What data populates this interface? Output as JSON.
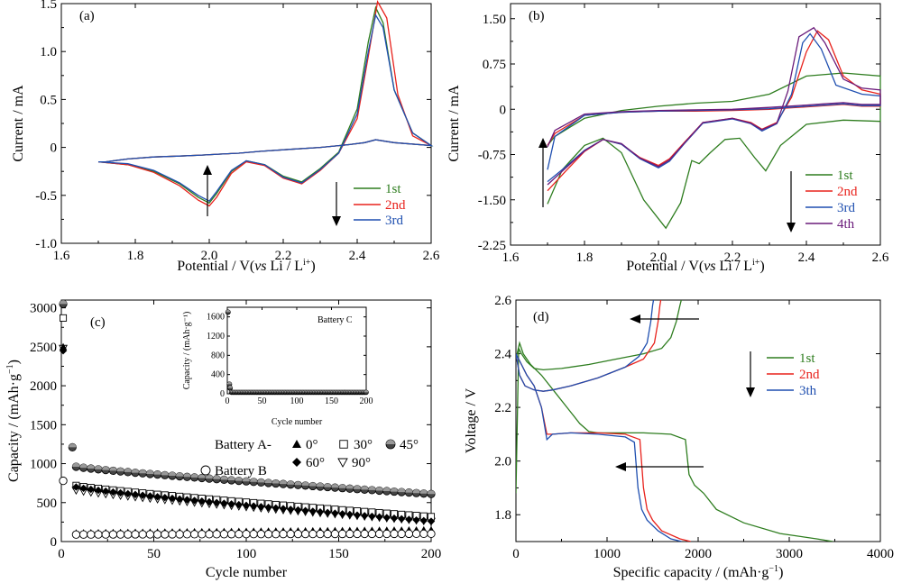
{
  "colors": {
    "green": "#2e7d1f",
    "red": "#e8221c",
    "blue": "#1f4fb0",
    "purple": "#6a1b7a",
    "black": "#000000"
  },
  "chart_data": [
    {
      "panel": "(a)",
      "type": "line",
      "xlabel_main": "Potential / V(",
      "xlabel_it": "vs",
      "xlabel_tail": " Li / L",
      "xlabel_sup": "i+",
      "xlabel_close": ")",
      "ylabel": "Current / mA",
      "xlim": [
        1.6,
        2.6
      ],
      "ylim": [
        -1.0,
        1.5
      ],
      "xticks": [
        "1.6",
        "1.8",
        "2.0",
        "2.2",
        "2.4",
        "2.6"
      ],
      "yticks": [
        "-1.0",
        "-0.5",
        "0",
        "0.5",
        "1.0",
        "1.5"
      ],
      "legend": [
        "1st",
        "2nd",
        "3rd"
      ],
      "series": [
        {
          "name": "1st",
          "color": "green",
          "x": [
            1.7,
            1.78,
            1.85,
            1.92,
            1.97,
            2.0,
            2.02,
            2.06,
            2.1,
            2.15,
            2.2,
            2.25,
            2.3,
            2.35,
            2.4,
            2.43,
            2.45,
            2.47,
            2.5,
            2.55,
            2.6,
            2.5,
            2.45,
            2.42,
            2.38,
            2.3,
            2.22,
            2.14,
            2.08,
            2.03,
            1.98,
            1.92,
            1.85,
            1.78,
            1.72,
            1.7
          ],
          "y": [
            -0.15,
            -0.18,
            -0.25,
            -0.38,
            -0.52,
            -0.58,
            -0.48,
            -0.25,
            -0.14,
            -0.18,
            -0.3,
            -0.36,
            -0.22,
            -0.05,
            0.4,
            1.1,
            1.46,
            1.3,
            0.6,
            0.15,
            0.02,
            0.05,
            0.08,
            0.05,
            0.03,
            0.0,
            -0.02,
            -0.04,
            -0.06,
            -0.07,
            -0.08,
            -0.09,
            -0.1,
            -0.12,
            -0.15,
            -0.15
          ]
        },
        {
          "name": "2nd",
          "color": "red",
          "x": [
            1.7,
            1.78,
            1.85,
            1.92,
            1.97,
            2.0,
            2.02,
            2.06,
            2.1,
            2.15,
            2.2,
            2.25,
            2.3,
            2.35,
            2.4,
            2.43,
            2.455,
            2.48,
            2.51,
            2.55,
            2.6,
            2.5,
            2.45,
            2.42,
            2.38,
            2.3,
            2.22,
            2.14,
            2.08,
            2.03,
            1.98,
            1.92,
            1.85,
            1.78,
            1.72,
            1.7
          ],
          "y": [
            -0.15,
            -0.18,
            -0.26,
            -0.4,
            -0.55,
            -0.61,
            -0.52,
            -0.27,
            -0.15,
            -0.19,
            -0.32,
            -0.38,
            -0.24,
            -0.06,
            0.3,
            0.95,
            1.52,
            1.35,
            0.55,
            0.12,
            0.02,
            0.05,
            0.08,
            0.05,
            0.03,
            0.0,
            -0.02,
            -0.04,
            -0.06,
            -0.07,
            -0.08,
            -0.09,
            -0.1,
            -0.12,
            -0.15,
            -0.15
          ]
        },
        {
          "name": "3rd",
          "color": "blue",
          "x": [
            1.7,
            1.78,
            1.85,
            1.92,
            1.97,
            2.0,
            2.02,
            2.06,
            2.1,
            2.15,
            2.2,
            2.25,
            2.3,
            2.35,
            2.4,
            2.43,
            2.45,
            2.47,
            2.5,
            2.55,
            2.6,
            2.5,
            2.45,
            2.42,
            2.38,
            2.3,
            2.22,
            2.14,
            2.08,
            2.03,
            1.98,
            1.92,
            1.85,
            1.78,
            1.72,
            1.7
          ],
          "y": [
            -0.15,
            -0.17,
            -0.24,
            -0.37,
            -0.5,
            -0.56,
            -0.46,
            -0.24,
            -0.14,
            -0.18,
            -0.31,
            -0.37,
            -0.23,
            -0.06,
            0.35,
            1.0,
            1.38,
            1.25,
            0.6,
            0.15,
            0.02,
            0.05,
            0.08,
            0.05,
            0.03,
            0.0,
            -0.02,
            -0.04,
            -0.06,
            -0.07,
            -0.08,
            -0.09,
            -0.1,
            -0.12,
            -0.15,
            -0.15
          ]
        }
      ]
    },
    {
      "panel": "(b)",
      "type": "line",
      "xlabel_main": "Potential / V(",
      "xlabel_it": "vs",
      "xlabel_tail": " Li / L",
      "xlabel_sup": "i+",
      "xlabel_close": ")",
      "ylabel": "Current / mA",
      "xlim": [
        1.6,
        2.6
      ],
      "ylim": [
        -2.25,
        1.75
      ],
      "xticks": [
        "1.6",
        "1.8",
        "2.0",
        "2.2",
        "2.4",
        "2.6"
      ],
      "yticks": [
        "-2.25",
        "-1.50",
        "-0.75",
        "0",
        "0.75",
        "1.50"
      ],
      "legend": [
        "1st",
        "2nd",
        "3rd",
        "4th"
      ],
      "series": [
        {
          "name": "1st",
          "color": "green",
          "x": [
            1.7,
            1.74,
            1.8,
            1.85,
            1.9,
            1.96,
            2.02,
            2.06,
            2.09,
            2.11,
            2.14,
            2.18,
            2.22,
            2.26,
            2.29,
            2.33,
            2.4,
            2.5,
            2.6,
            2.6,
            2.5,
            2.4,
            2.3,
            2.2,
            2.1,
            2.0,
            1.9,
            1.8,
            1.72,
            1.7
          ],
          "y": [
            -1.57,
            -1.0,
            -0.6,
            -0.48,
            -0.72,
            -1.5,
            -1.97,
            -1.55,
            -0.85,
            -0.9,
            -0.72,
            -0.5,
            -0.48,
            -0.8,
            -1.02,
            -0.6,
            -0.25,
            -0.18,
            -0.2,
            0.55,
            0.6,
            0.55,
            0.25,
            0.13,
            0.1,
            0.05,
            -0.02,
            -0.15,
            -0.45,
            -0.6
          ]
        },
        {
          "name": "2nd",
          "color": "red",
          "x": [
            1.7,
            1.75,
            1.8,
            1.85,
            1.9,
            1.95,
            2.0,
            2.03,
            2.07,
            2.12,
            2.2,
            2.25,
            2.28,
            2.32,
            2.36,
            2.4,
            2.43,
            2.46,
            2.5,
            2.55,
            2.6,
            2.6,
            2.55,
            2.5,
            2.45,
            2.4,
            2.35,
            2.3,
            2.2,
            2.1,
            2.0,
            1.9,
            1.8,
            1.72,
            1.7
          ],
          "y": [
            -1.35,
            -1.02,
            -0.7,
            -0.5,
            -0.58,
            -0.8,
            -0.93,
            -0.82,
            -0.55,
            -0.22,
            -0.15,
            -0.22,
            -0.33,
            -0.22,
            0.2,
            0.95,
            1.3,
            1.15,
            0.55,
            0.32,
            0.25,
            0.05,
            0.05,
            0.08,
            0.06,
            0.04,
            0.02,
            0.0,
            -0.02,
            -0.03,
            -0.03,
            -0.05,
            -0.1,
            -0.4,
            -0.6
          ]
        },
        {
          "name": "3rd",
          "color": "blue",
          "x": [
            1.7,
            1.75,
            1.8,
            1.85,
            1.9,
            1.95,
            2.0,
            2.03,
            2.07,
            2.12,
            2.2,
            2.25,
            2.28,
            2.32,
            2.36,
            2.39,
            2.41,
            2.44,
            2.48,
            2.55,
            2.6,
            2.6,
            2.55,
            2.5,
            2.45,
            2.4,
            2.35,
            2.3,
            2.2,
            2.1,
            2.0,
            1.9,
            1.8,
            1.72,
            1.7
          ],
          "y": [
            -1.2,
            -0.95,
            -0.68,
            -0.5,
            -0.58,
            -0.82,
            -0.97,
            -0.86,
            -0.57,
            -0.23,
            -0.16,
            -0.24,
            -0.36,
            -0.24,
            0.25,
            1.1,
            1.25,
            1.0,
            0.4,
            0.25,
            0.22,
            0.06,
            0.06,
            0.09,
            0.07,
            0.05,
            0.03,
            0.01,
            -0.01,
            -0.02,
            -0.03,
            -0.05,
            -0.1,
            -0.45,
            -1.0
          ]
        },
        {
          "name": "4th",
          "color": "purple",
          "x": [
            1.7,
            1.75,
            1.8,
            1.85,
            1.9,
            1.95,
            2.0,
            2.03,
            2.07,
            2.12,
            2.2,
            2.25,
            2.28,
            2.32,
            2.35,
            2.38,
            2.42,
            2.45,
            2.5,
            2.55,
            2.6,
            2.6,
            2.55,
            2.5,
            2.45,
            2.4,
            2.35,
            2.3,
            2.2,
            2.1,
            2.0,
            1.9,
            1.8,
            1.72,
            1.7
          ],
          "y": [
            -1.25,
            -0.97,
            -0.69,
            -0.5,
            -0.57,
            -0.81,
            -0.95,
            -0.84,
            -0.56,
            -0.22,
            -0.15,
            -0.23,
            -0.34,
            -0.23,
            0.3,
            1.2,
            1.35,
            1.1,
            0.5,
            0.35,
            0.32,
            0.08,
            0.08,
            0.11,
            0.09,
            0.07,
            0.05,
            0.03,
            0.0,
            -0.01,
            -0.02,
            -0.04,
            -0.08,
            -0.35,
            -0.62
          ]
        }
      ]
    },
    {
      "panel": "(c)",
      "type": "scatter",
      "xlabel": "Cycle number",
      "ylabel_main": "Capacity / (mAh·g",
      "ylabel_sup": "−1",
      "ylabel_close": ")",
      "xlim": [
        0,
        200
      ],
      "ylim": [
        0,
        3100
      ],
      "xticks": [
        "0",
        "50",
        "100",
        "150",
        "200"
      ],
      "yticks": [
        "0",
        "500",
        "1000",
        "1500",
        "2000",
        "2500",
        "3000"
      ],
      "legend": {
        "a": "Battery A-",
        "b": "Battery B",
        "angles": [
          "0°",
          "30°",
          "45°",
          "60°",
          "90°"
        ]
      },
      "series": [
        {
          "name": "0°",
          "marker": "triangle",
          "first": [
            [
              1,
              2500
            ]
          ],
          "start": 110,
          "end": 150
        },
        {
          "name": "30°",
          "marker": "square",
          "first": [
            [
              1,
              2870
            ]
          ],
          "start": 720,
          "end": 320
        },
        {
          "name": "45°",
          "marker": "halfcircle",
          "first": [
            [
              1,
              3050
            ],
            [
              6,
              1210
            ]
          ],
          "start": 960,
          "end": 610
        },
        {
          "name": "60°",
          "marker": "diamond",
          "first": [
            [
              1,
              2450
            ]
          ],
          "start": 700,
          "end": 260
        },
        {
          "name": "90°",
          "marker": "triangle-down",
          "first": [
            [
              1,
              2480
            ]
          ],
          "start": 660,
          "end": 260
        },
        {
          "name": "Battery B",
          "marker": "circle",
          "first": [
            [
              1,
              780
            ]
          ],
          "start": 90,
          "end": 100
        }
      ],
      "inset": {
        "title": "Battery C",
        "xlabel": "Cycle number",
        "ylabel": "Capacity / (mAh·g⁻¹)",
        "xlim": [
          0,
          200
        ],
        "ylim": [
          0,
          1800
        ],
        "xticks": [
          "0",
          "50",
          "100",
          "150",
          "200"
        ],
        "yticks": [
          "0",
          "400",
          "800",
          "1200",
          "1600"
        ],
        "first": [
          [
            1,
            1700
          ],
          [
            3,
            200
          ],
          [
            4,
            120
          ]
        ],
        "tail": 30
      }
    },
    {
      "panel": "(d)",
      "type": "line",
      "xlabel_main": "Specific capacity / (mAh·g",
      "xlabel_sup": "−1",
      "xlabel_close": ")",
      "ylabel": "Voltage / V",
      "xlim": [
        0,
        4000
      ],
      "ylim": [
        1.7,
        2.6
      ],
      "xticks": [
        "0",
        "1000",
        "2000",
        "3000",
        "4000"
      ],
      "yticks": [
        "1.8",
        "2.0",
        "2.2",
        "2.4",
        "2.6"
      ],
      "legend": [
        "1st",
        "2nd",
        "3th"
      ],
      "series": [
        {
          "name": "1st",
          "color": "green",
          "discharge": {
            "x": [
              0,
              40,
              80,
              160,
              280,
              420,
              560,
              700,
              800,
              900,
              1100,
              1400,
              1700,
              1860,
              1900,
              1960,
              2060,
              2200,
              2500,
              2900,
              3300,
              3480
            ],
            "y": [
              2.38,
              2.44,
              2.4,
              2.36,
              2.32,
              2.26,
              2.2,
              2.14,
              2.11,
              2.105,
              2.105,
              2.105,
              2.1,
              2.08,
              1.95,
              1.91,
              1.88,
              1.82,
              1.77,
              1.73,
              1.71,
              1.7
            ]
          },
          "charge": {
            "x": [
              0,
              30,
              60,
              120,
              200,
              300,
              500,
              800,
              1100,
              1400,
              1600,
              1700,
              1760,
              1800,
              1830,
              1850
            ],
            "y": [
              1.88,
              2.42,
              2.4,
              2.37,
              2.345,
              2.34,
              2.345,
              2.36,
              2.38,
              2.4,
              2.42,
              2.46,
              2.52,
              2.58,
              2.62,
              2.64
            ]
          }
        },
        {
          "name": "2nd",
          "color": "red",
          "discharge": {
            "x": [
              0,
              60,
              120,
              200,
              280,
              340,
              400,
              600,
              900,
              1200,
              1360,
              1400,
              1440,
              1500,
              1600,
              1800,
              1920
            ],
            "y": [
              2.4,
              2.36,
              2.32,
              2.28,
              2.2,
              2.1,
              2.1,
              2.105,
              2.105,
              2.1,
              2.08,
              1.9,
              1.82,
              1.78,
              1.74,
              1.71,
              1.7
            ]
          },
          "charge": {
            "x": [
              0,
              40,
              100,
              200,
              300,
              400,
              600,
              900,
              1200,
              1400,
              1520,
              1560,
              1580,
              1600
            ],
            "y": [
              2.4,
              2.32,
              2.28,
              2.265,
              2.26,
              2.265,
              2.28,
              2.31,
              2.35,
              2.38,
              2.44,
              2.52,
              2.58,
              2.62
            ]
          }
        },
        {
          "name": "3th",
          "color": "blue",
          "discharge": {
            "x": [
              0,
              60,
              120,
              200,
              280,
              340,
              400,
              600,
              900,
              1200,
              1300,
              1340,
              1380,
              1440,
              1560,
              1700,
              1820
            ],
            "y": [
              2.4,
              2.36,
              2.32,
              2.28,
              2.2,
              2.08,
              2.1,
              2.105,
              2.1,
              2.09,
              2.07,
              1.9,
              1.82,
              1.78,
              1.74,
              1.71,
              1.7
            ]
          },
          "charge": {
            "x": [
              0,
              40,
              100,
              200,
              300,
              400,
              600,
              900,
              1200,
              1350,
              1440,
              1480,
              1500,
              1520
            ],
            "y": [
              2.4,
              2.32,
              2.28,
              2.265,
              2.26,
              2.265,
              2.28,
              2.31,
              2.35,
              2.39,
              2.44,
              2.52,
              2.58,
              2.62
            ]
          }
        }
      ]
    }
  ]
}
